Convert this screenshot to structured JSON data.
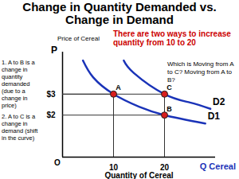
{
  "chart_data": {
    "type": "line",
    "title": "Change in Quantity Demanded vs. Change in Demand",
    "xlabel": "Quantity of Cereal",
    "ylabel": "Price of Cereal",
    "y_symbol": "P",
    "x_symbol": "Q Cereal",
    "origin_label": "O",
    "xlim": [
      0,
      30
    ],
    "xticks": [
      10,
      20
    ],
    "ylim": [
      0,
      5
    ],
    "yticks": [
      {
        "value": 2,
        "label": "$2"
      },
      {
        "value": 3,
        "label": "$3"
      }
    ],
    "grid": false,
    "series": [
      {
        "name": "D1",
        "color": "#1a33b8",
        "x": [
          4,
          6,
          10,
          15,
          20,
          28
        ],
        "values": [
          4.6,
          3.8,
          3,
          2.4,
          2,
          1.6
        ]
      },
      {
        "name": "D2",
        "color": "#1a33b8",
        "x": [
          12,
          14,
          20,
          25,
          29
        ],
        "values": [
          4.6,
          4,
          3,
          2.6,
          2.3
        ]
      }
    ],
    "points": [
      {
        "label": "A",
        "x": 10,
        "y": 3
      },
      {
        "label": "B",
        "x": 20,
        "y": 2
      },
      {
        "label": "C",
        "x": 20,
        "y": 3
      }
    ],
    "point_color": "#d81e1e",
    "marker": "circle",
    "notes": [
      "1. A to B is a change in quantity demanded (due to a change in price)",
      "2. A to C is a change in demand (shift in the curve)"
    ],
    "callout": "There are two ways to increase quantity from 10 to 20",
    "question": "Which is Moving from A to C? Moving from A to B?"
  }
}
